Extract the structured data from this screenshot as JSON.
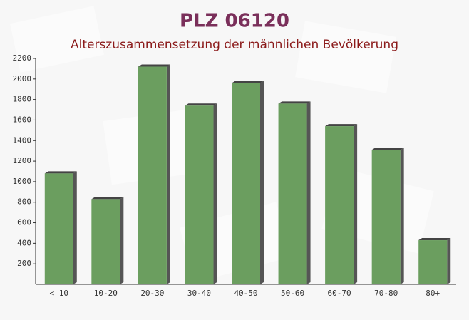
{
  "chart_data": {
    "type": "bar",
    "title": "PLZ 06120",
    "subtitle": "Alterszusammensetzung der männlichen Bevölkerung",
    "categories": [
      "< 10",
      "10-20",
      "20-30",
      "30-40",
      "40-50",
      "50-60",
      "60-70",
      "70-80",
      "80+"
    ],
    "values": [
      1080,
      830,
      2120,
      1740,
      1960,
      1760,
      1540,
      1310,
      430
    ],
    "color": "#6b9e5f",
    "ylim": [
      0,
      2200
    ],
    "yticks": [
      200,
      400,
      600,
      800,
      1000,
      1200,
      1400,
      1600,
      1800,
      2000,
      2200
    ],
    "grid": false
  }
}
